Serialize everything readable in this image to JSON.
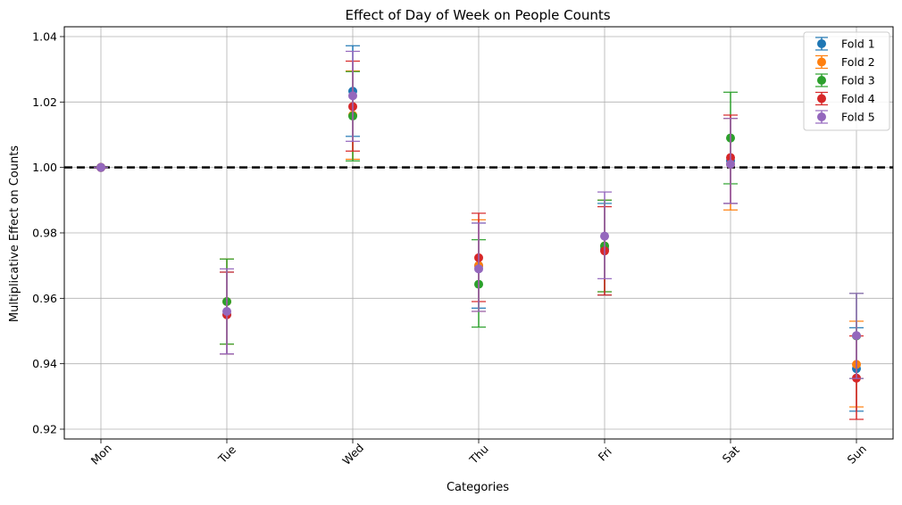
{
  "chart_data": {
    "type": "scatter",
    "title": "Effect of Day of Week on People Counts",
    "xlabel": "Categories",
    "ylabel": "Multiplicative Effect on Counts",
    "categories": [
      "Mon",
      "Tue",
      "Wed",
      "Thu",
      "Fri",
      "Sat",
      "Sun"
    ],
    "ylim": [
      0.917,
      1.043
    ],
    "yticks": [
      "0.92",
      "0.94",
      "0.96",
      "0.98",
      "1.00",
      "1.02",
      "1.04"
    ],
    "grid": true,
    "reference_line": 1.0,
    "legend_position": "top-right",
    "series": [
      {
        "name": "Fold 1",
        "color": "#1f77b4",
        "values": [
          1.0,
          0.955,
          1.0233,
          0.97,
          0.975,
          1.002,
          0.9385
        ],
        "err_low": [
          1.0,
          0.943,
          1.0095,
          0.957,
          0.961,
          0.989,
          0.9255
        ],
        "err_high": [
          1.0,
          0.968,
          1.0372,
          0.983,
          0.989,
          1.015,
          0.951
        ]
      },
      {
        "name": "Fold 2",
        "color": "#ff7f0e",
        "values": [
          1.0,
          0.959,
          1.016,
          0.97,
          0.976,
          1.001,
          0.9398
        ],
        "err_low": [
          1.0,
          0.946,
          1.0025,
          0.956,
          0.962,
          0.987,
          0.9268
        ],
        "err_high": [
          1.0,
          0.972,
          1.0295,
          0.984,
          0.99,
          1.015,
          0.953
        ]
      },
      {
        "name": "Fold 3",
        "color": "#2ca02c",
        "values": [
          1.0,
          0.959,
          1.0157,
          0.9643,
          0.976,
          1.009,
          0.9485
        ],
        "err_low": [
          1.0,
          0.946,
          1.002,
          0.9512,
          0.962,
          0.995,
          0.9355
        ],
        "err_high": [
          1.0,
          0.972,
          1.0293,
          0.9779,
          0.99,
          1.023,
          0.9615
        ]
      },
      {
        "name": "Fold 4",
        "color": "#d62728",
        "values": [
          1.0,
          0.955,
          1.0186,
          0.9724,
          0.9745,
          1.003,
          0.9356
        ],
        "err_low": [
          1.0,
          0.943,
          1.005,
          0.959,
          0.961,
          0.989,
          0.923
        ],
        "err_high": [
          1.0,
          0.968,
          1.0325,
          0.986,
          0.988,
          1.016,
          0.9485
        ]
      },
      {
        "name": "Fold 5",
        "color": "#9467bd",
        "values": [
          1.0,
          0.956,
          1.0219,
          0.969,
          0.979,
          1.001,
          0.9486
        ],
        "err_low": [
          1.0,
          0.943,
          1.008,
          0.956,
          0.966,
          0.989,
          0.9355
        ],
        "err_high": [
          1.0,
          0.969,
          1.0355,
          0.983,
          0.9925,
          1.015,
          0.9615
        ]
      }
    ]
  }
}
